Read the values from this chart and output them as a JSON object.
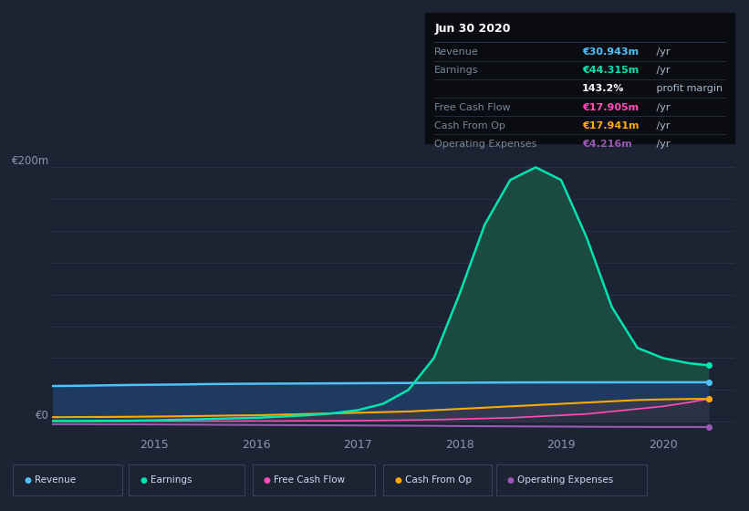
{
  "bg_color": "#1c2333",
  "plot_bg_color": "#1c2333",
  "grid_color": "#2a3145",
  "title_date": "Jun 30 2020",
  "tooltip": {
    "Revenue": {
      "value": "€30.943m",
      "color": "#4fc3f7"
    },
    "Earnings": {
      "value": "€44.315m",
      "color": "#00e5b0"
    },
    "profit_margin": "143.2%",
    "Free Cash Flow": {
      "value": "€17.905m",
      "color": "#ff4db8"
    },
    "Cash From Op": {
      "value": "€17.941m",
      "color": "#ffaa00"
    },
    "Operating Expenses": {
      "value": "€4.216m",
      "color": "#9b59b6"
    }
  },
  "series": {
    "x": [
      2014.0,
      2014.25,
      2014.5,
      2014.75,
      2015.0,
      2015.25,
      2015.5,
      2015.75,
      2016.0,
      2016.25,
      2016.5,
      2016.75,
      2017.0,
      2017.25,
      2017.5,
      2017.75,
      2018.0,
      2018.25,
      2018.5,
      2018.75,
      2019.0,
      2019.25,
      2019.5,
      2019.75,
      2020.0,
      2020.25,
      2020.45
    ],
    "Revenue": [
      28,
      28.2,
      28.5,
      28.8,
      29,
      29.2,
      29.5,
      29.7,
      29.8,
      29.9,
      30.0,
      30.1,
      30.2,
      30.3,
      30.4,
      30.5,
      30.6,
      30.7,
      30.8,
      30.85,
      30.88,
      30.9,
      30.92,
      30.93,
      30.93,
      30.94,
      30.94
    ],
    "Earnings": [
      0.5,
      0.5,
      0.6,
      0.7,
      1.0,
      1.5,
      2.0,
      2.5,
      3.0,
      4.0,
      5.0,
      6.5,
      9.0,
      14,
      25,
      50,
      100,
      155,
      190,
      200,
      190,
      145,
      90,
      58,
      50,
      46,
      44.3
    ],
    "FreeCashFlow": [
      0.2,
      0.2,
      0.2,
      0.3,
      0.3,
      0.3,
      0.4,
      0.4,
      0.5,
      0.5,
      0.6,
      0.6,
      0.8,
      1.0,
      1.2,
      1.5,
      2.0,
      2.5,
      3.0,
      4.0,
      5.0,
      6.0,
      8.0,
      10.0,
      12.0,
      15.0,
      17.9
    ],
    "CashFromOp": [
      3.5,
      3.6,
      3.7,
      3.8,
      4.0,
      4.2,
      4.5,
      4.8,
      5.0,
      5.5,
      6.0,
      6.5,
      7.0,
      7.5,
      8.0,
      9.0,
      10.0,
      11.0,
      12.0,
      13.0,
      14.0,
      15.0,
      16.0,
      17.0,
      17.5,
      17.8,
      17.9
    ],
    "OperatingExpenses": [
      -2.0,
      -2.0,
      -2.1,
      -2.1,
      -2.2,
      -2.3,
      -2.4,
      -2.5,
      -2.6,
      -2.7,
      -2.8,
      -2.9,
      -3.0,
      -3.1,
      -3.2,
      -3.3,
      -3.5,
      -3.6,
      -3.7,
      -3.8,
      -3.9,
      -4.0,
      -4.1,
      -4.15,
      -4.2,
      -4.21,
      -4.22
    ]
  },
  "colors": {
    "Revenue": "#4fc3f7",
    "Earnings": "#00e5b0",
    "FreeCashFlow": "#ff4db8",
    "CashFromOp": "#ffaa00",
    "OperatingExpenses": "#9b59b6"
  },
  "ylabel_200": "€200m",
  "ylabel_0": "€0",
  "xticks": [
    2015,
    2016,
    2017,
    2018,
    2019,
    2020
  ],
  "xlim": [
    2014.0,
    2020.7
  ],
  "ylim": [
    -10,
    215
  ]
}
